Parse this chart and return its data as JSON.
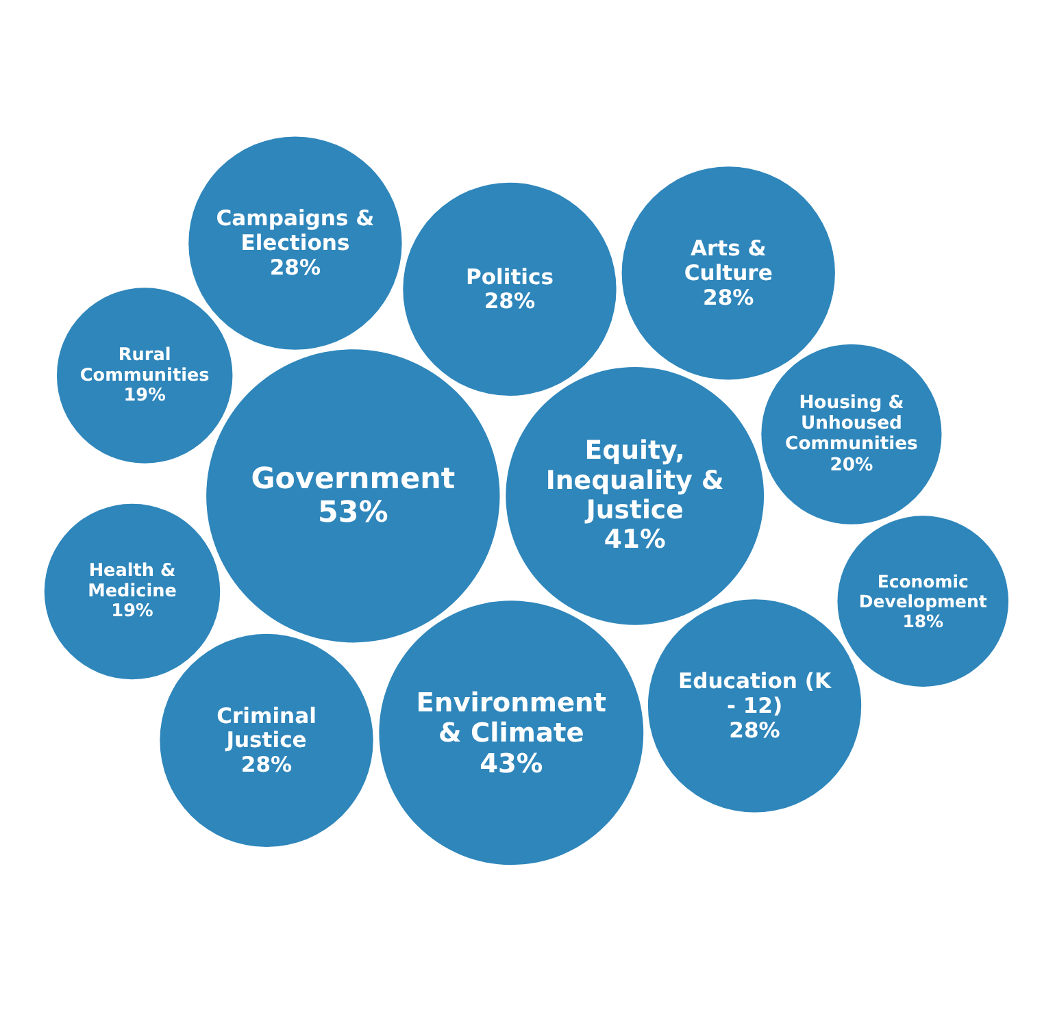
{
  "chart_data": {
    "type": "other",
    "color": "#2e86bb",
    "categories": [
      "Government",
      "Equity, Inequality & Justice",
      "Environment & Climate",
      "Politics",
      "Campaigns & Elections",
      "Criminal Justice",
      "Arts & Culture",
      "Education (K - 12)",
      "Rural Communities",
      "Health & Medicine",
      "Housing & Unhoused Communities",
      "Economic Development"
    ],
    "values": [
      53,
      41,
      43,
      28,
      28,
      28,
      28,
      28,
      19,
      19,
      20,
      18
    ],
    "value_labels": [
      "53%",
      "41%",
      "43%",
      "28%",
      "28%",
      "28%",
      "28%",
      "28%",
      "19%",
      "19%",
      "20%",
      "18%"
    ],
    "data_labels": true
  }
}
